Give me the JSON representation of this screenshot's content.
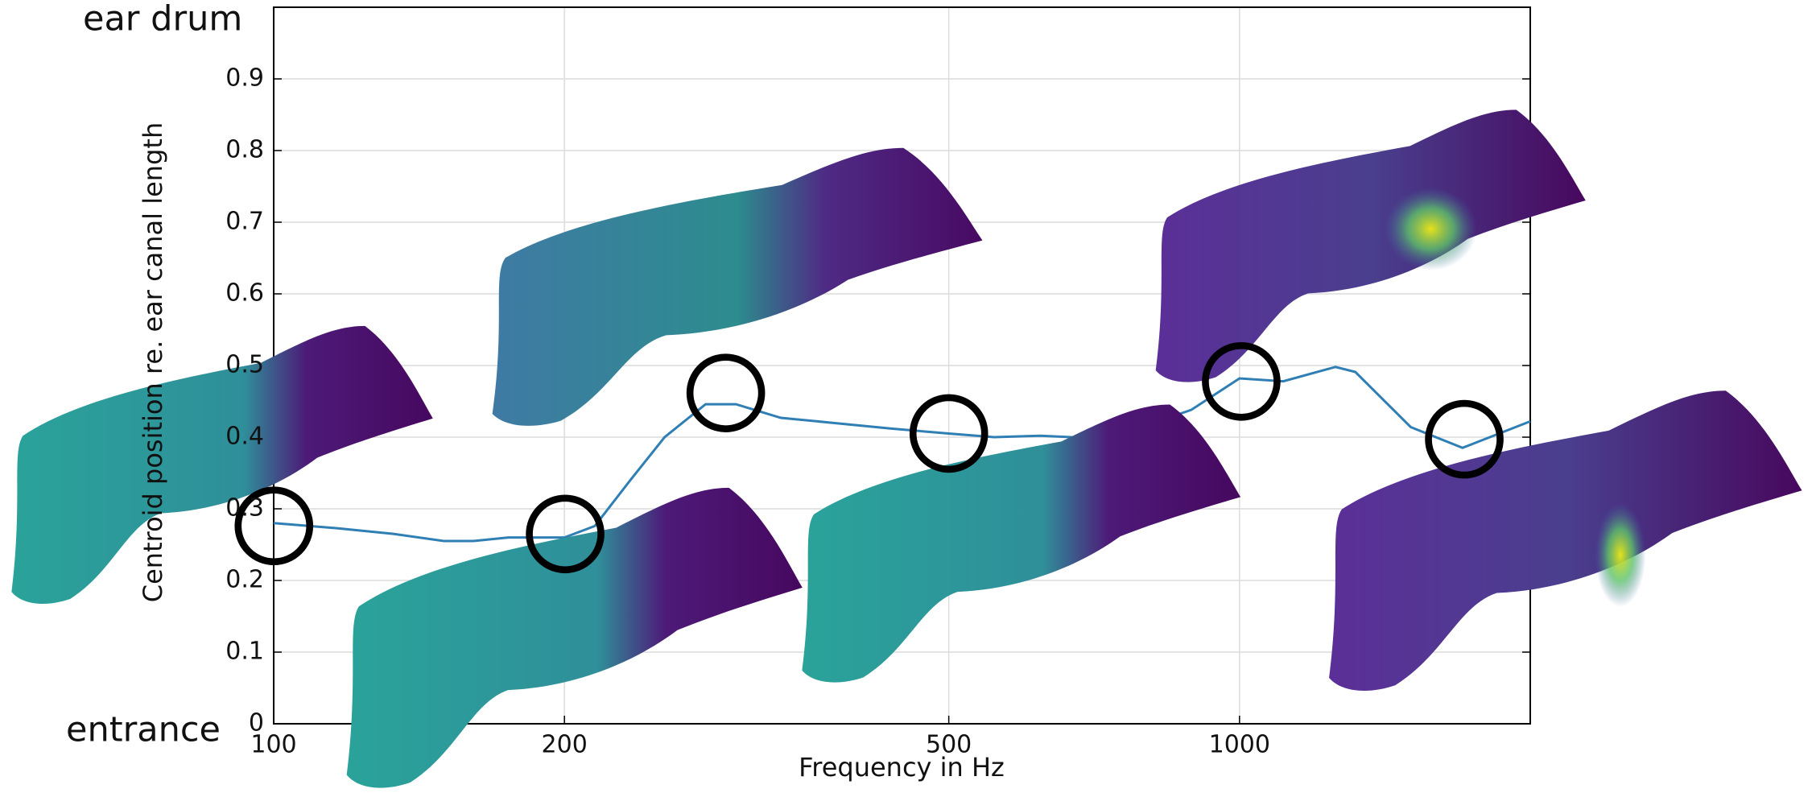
{
  "chart_data": {
    "type": "line",
    "x_label": "Frequency in Hz",
    "y_label": "Centroid position re. ear canal length",
    "annotations": [
      "ear drum",
      "entrance"
    ],
    "log_x": true,
    "grid": true,
    "xlim": [
      100,
      2000
    ],
    "xticks": [
      100,
      200,
      500,
      1000
    ],
    "ylim": [
      0,
      1
    ],
    "yticks": [
      0,
      0.1,
      0.2,
      0.3,
      0.4,
      0.5,
      0.6,
      0.7,
      0.8,
      0.9
    ],
    "x": [
      100,
      116,
      133,
      150,
      161,
      175,
      200,
      215,
      234,
      254,
      280,
      301,
      335,
      379,
      435,
      500,
      557,
      622,
      695,
      776,
      891,
      1000,
      1110,
      1257,
      1318,
      1504,
      1702,
      2000
    ],
    "series": [
      {
        "name": "Centroid",
        "color": "#2f7fb5",
        "values": [
          0.28,
          0.273,
          0.265,
          0.255,
          0.255,
          0.26,
          0.26,
          0.276,
          0.34,
          0.4,
          0.446,
          0.446,
          0.427,
          0.42,
          0.412,
          0.405,
          0.4,
          0.402,
          0.399,
          0.41,
          0.438,
          0.482,
          0.478,
          0.498,
          0.491,
          0.414,
          0.385,
          0.422
        ]
      }
    ]
  }
}
